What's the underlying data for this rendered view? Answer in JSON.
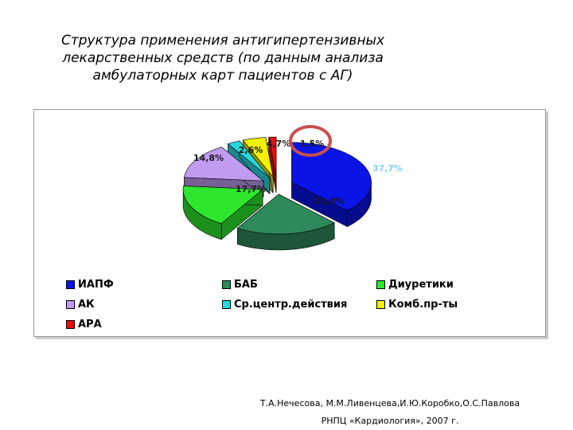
{
  "title": {
    "line1": "Структура применения антигипертензивных",
    "line2": "лекарственных средств (по данным анализа",
    "line3": "амбулаторных карт пациентов с АГ)"
  },
  "chart_data": {
    "type": "pie",
    "title": "",
    "legend_position": "bottom",
    "series": [
      {
        "name": "ИАПФ",
        "value": 37.7,
        "label": "37,7%",
        "color": "#0a14e6"
      },
      {
        "name": "БАБ",
        "value": 21.0,
        "label": "21,0%",
        "color": "#2e8a5a"
      },
      {
        "name": "Диуретики",
        "value": 17.7,
        "label": "17,7%",
        "color": "#2ee62e"
      },
      {
        "name": "АК",
        "value": 14.8,
        "label": "14,8%",
        "color": "#c09bf0"
      },
      {
        "name": "Ср.центр.действия",
        "value": 2.6,
        "label": "2,6%",
        "color": "#2ad6e0"
      },
      {
        "name": "Комб.пр-ты",
        "value": 4.7,
        "label": "4,7%",
        "color": "#f0f000"
      },
      {
        "name": "АРА",
        "value": 1.5,
        "label": "1,5%",
        "color": "#e01010"
      }
    ],
    "highlight": {
      "series": "АРА",
      "color": "#c84f4f"
    }
  },
  "credit": {
    "line1": "Т.А.Нечесова, М.М.Ливенцева,И.Ю.Коробко,О.С.Павлова",
    "line2": "РНПЦ «Кардиология», 2007 г."
  }
}
